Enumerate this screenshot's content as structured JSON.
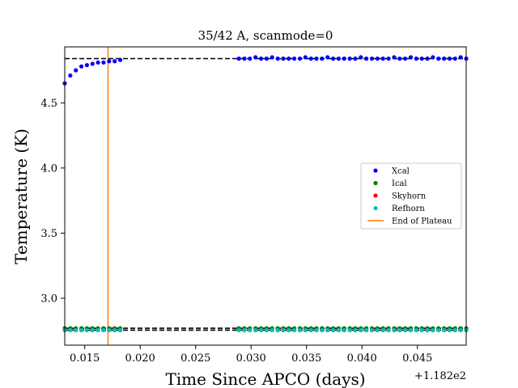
{
  "chart_data": {
    "type": "scatter",
    "title": "35/42 A, scanmode=0",
    "xlabel": "Time Since APCO (days)",
    "ylabel": "Temperature (K)",
    "x_offset_label": "+1.182e2",
    "x_offset": 118.2,
    "xlim": [
      0.0132,
      0.0494
    ],
    "ylim": [
      2.64,
      4.93
    ],
    "x_ticks": [
      0.015,
      0.02,
      0.025,
      0.03,
      0.035,
      0.04,
      0.045
    ],
    "x_tick_labels": [
      "0.015",
      "0.020",
      "0.025",
      "0.030",
      "0.035",
      "0.040",
      "0.045"
    ],
    "y_ticks": [
      3.0,
      3.5,
      4.0,
      4.5
    ],
    "y_tick_labels": [
      "3.0",
      "3.5",
      "4.0",
      "4.5"
    ],
    "reference_lines": [
      {
        "y": 4.84,
        "style": "dashed",
        "color": "#000000"
      },
      {
        "y": 2.77,
        "style": "dashed",
        "color": "#000000"
      },
      {
        "y": 2.755,
        "style": "dashed",
        "color": "#000000"
      }
    ],
    "vertical_line": {
      "x": 0.0171,
      "label": "End of Plateau",
      "color": "#ff7f0e"
    },
    "series": [
      {
        "name": "Xcal",
        "color": "#0000ff",
        "x": [
          0.0132,
          0.0137,
          0.0142,
          0.0147,
          0.0152,
          0.0157,
          0.0162,
          0.0167,
          0.0172,
          0.0177,
          0.0182,
          0.0289,
          0.0294,
          0.0299,
          0.0304,
          0.0309,
          0.0314,
          0.0319,
          0.0324,
          0.0329,
          0.0334,
          0.0339,
          0.0344,
          0.0349,
          0.0354,
          0.0359,
          0.0364,
          0.0369,
          0.0374,
          0.0379,
          0.0384,
          0.0389,
          0.0394,
          0.0399,
          0.0404,
          0.0409,
          0.0414,
          0.0419,
          0.0424,
          0.0429,
          0.0434,
          0.0439,
          0.0444,
          0.0449,
          0.0454,
          0.0459,
          0.0464,
          0.0469,
          0.0474,
          0.0479,
          0.0484,
          0.0489,
          0.0494
        ],
        "y": [
          4.65,
          4.71,
          4.75,
          4.78,
          4.79,
          4.8,
          4.81,
          4.81,
          4.82,
          4.82,
          4.83,
          4.84,
          4.84,
          4.84,
          4.85,
          4.84,
          4.84,
          4.85,
          4.84,
          4.84,
          4.84,
          4.84,
          4.84,
          4.85,
          4.84,
          4.84,
          4.84,
          4.85,
          4.84,
          4.84,
          4.84,
          4.84,
          4.84,
          4.85,
          4.84,
          4.84,
          4.84,
          4.84,
          4.84,
          4.85,
          4.84,
          4.84,
          4.85,
          4.84,
          4.84,
          4.84,
          4.85,
          4.84,
          4.84,
          4.84,
          4.84,
          4.85,
          4.84
        ]
      },
      {
        "name": "Ical",
        "color": "#008000",
        "x": [
          0.0132,
          0.0137,
          0.0142,
          0.0147,
          0.0152,
          0.0157,
          0.0162,
          0.0167,
          0.0172,
          0.0177,
          0.0182,
          0.0289,
          0.0294,
          0.0299,
          0.0304,
          0.0309,
          0.0314,
          0.0319,
          0.0324,
          0.0329,
          0.0334,
          0.0339,
          0.0344,
          0.0349,
          0.0354,
          0.0359,
          0.0364,
          0.0369,
          0.0374,
          0.0379,
          0.0384,
          0.0389,
          0.0394,
          0.0399,
          0.0404,
          0.0409,
          0.0414,
          0.0419,
          0.0424,
          0.0429,
          0.0434,
          0.0439,
          0.0444,
          0.0449,
          0.0454,
          0.0459,
          0.0464,
          0.0469,
          0.0474,
          0.0479,
          0.0484,
          0.0489,
          0.0494
        ],
        "y": [
          2.77,
          2.77,
          2.77,
          2.77,
          2.77,
          2.77,
          2.77,
          2.77,
          2.77,
          2.77,
          2.77,
          2.77,
          2.77,
          2.77,
          2.77,
          2.77,
          2.77,
          2.77,
          2.77,
          2.77,
          2.77,
          2.77,
          2.77,
          2.77,
          2.77,
          2.77,
          2.77,
          2.77,
          2.77,
          2.77,
          2.77,
          2.77,
          2.77,
          2.77,
          2.77,
          2.77,
          2.77,
          2.77,
          2.77,
          2.77,
          2.77,
          2.77,
          2.77,
          2.77,
          2.77,
          2.77,
          2.77,
          2.77,
          2.77,
          2.77,
          2.77,
          2.77,
          2.77
        ]
      },
      {
        "name": "Skyhorn",
        "color": "#ff0000",
        "x": [
          0.0132,
          0.0137,
          0.0142,
          0.0147,
          0.0152,
          0.0157,
          0.0162,
          0.0167,
          0.0172,
          0.0177,
          0.0182,
          0.0289,
          0.0294,
          0.0299,
          0.0304,
          0.0309,
          0.0314,
          0.0319,
          0.0324,
          0.0329,
          0.0334,
          0.0339,
          0.0344,
          0.0349,
          0.0354,
          0.0359,
          0.0364,
          0.0369,
          0.0374,
          0.0379,
          0.0384,
          0.0389,
          0.0394,
          0.0399,
          0.0404,
          0.0409,
          0.0414,
          0.0419,
          0.0424,
          0.0429,
          0.0434,
          0.0439,
          0.0444,
          0.0449,
          0.0454,
          0.0459,
          0.0464,
          0.0469,
          0.0474,
          0.0479,
          0.0484,
          0.0489,
          0.0494
        ],
        "y": [
          2.755,
          2.755,
          2.755,
          2.755,
          2.755,
          2.755,
          2.755,
          2.755,
          2.755,
          2.755,
          2.755,
          2.755,
          2.755,
          2.755,
          2.755,
          2.755,
          2.755,
          2.755,
          2.755,
          2.755,
          2.755,
          2.755,
          2.755,
          2.755,
          2.755,
          2.755,
          2.755,
          2.755,
          2.755,
          2.755,
          2.755,
          2.755,
          2.755,
          2.755,
          2.755,
          2.755,
          2.755,
          2.755,
          2.755,
          2.755,
          2.755,
          2.755,
          2.755,
          2.755,
          2.755,
          2.755,
          2.755,
          2.755,
          2.755,
          2.755,
          2.755,
          2.755,
          2.755
        ]
      },
      {
        "name": "Refhorn",
        "color": "#00bfbf",
        "x": [
          0.0132,
          0.0137,
          0.0142,
          0.0147,
          0.0152,
          0.0157,
          0.0162,
          0.0167,
          0.0172,
          0.0177,
          0.0182,
          0.0289,
          0.0294,
          0.0299,
          0.0304,
          0.0309,
          0.0314,
          0.0319,
          0.0324,
          0.0329,
          0.0334,
          0.0339,
          0.0344,
          0.0349,
          0.0354,
          0.0359,
          0.0364,
          0.0369,
          0.0374,
          0.0379,
          0.0384,
          0.0389,
          0.0394,
          0.0399,
          0.0404,
          0.0409,
          0.0414,
          0.0419,
          0.0424,
          0.0429,
          0.0434,
          0.0439,
          0.0444,
          0.0449,
          0.0454,
          0.0459,
          0.0464,
          0.0469,
          0.0474,
          0.0479,
          0.0484,
          0.0489,
          0.0494
        ],
        "y": [
          2.755,
          2.755,
          2.755,
          2.755,
          2.755,
          2.755,
          2.755,
          2.755,
          2.755,
          2.755,
          2.755,
          2.755,
          2.755,
          2.755,
          2.755,
          2.755,
          2.755,
          2.755,
          2.755,
          2.755,
          2.755,
          2.755,
          2.755,
          2.755,
          2.755,
          2.755,
          2.755,
          2.755,
          2.755,
          2.755,
          2.755,
          2.755,
          2.755,
          2.755,
          2.755,
          2.755,
          2.755,
          2.755,
          2.755,
          2.755,
          2.755,
          2.755,
          2.755,
          2.755,
          2.755,
          2.755,
          2.755,
          2.755,
          2.755,
          2.755,
          2.755,
          2.755,
          2.755
        ]
      }
    ],
    "legend": {
      "placement": "center-right",
      "entries": [
        "Xcal",
        "Ical",
        "Skyhorn",
        "Refhorn",
        "End of Plateau"
      ]
    }
  }
}
